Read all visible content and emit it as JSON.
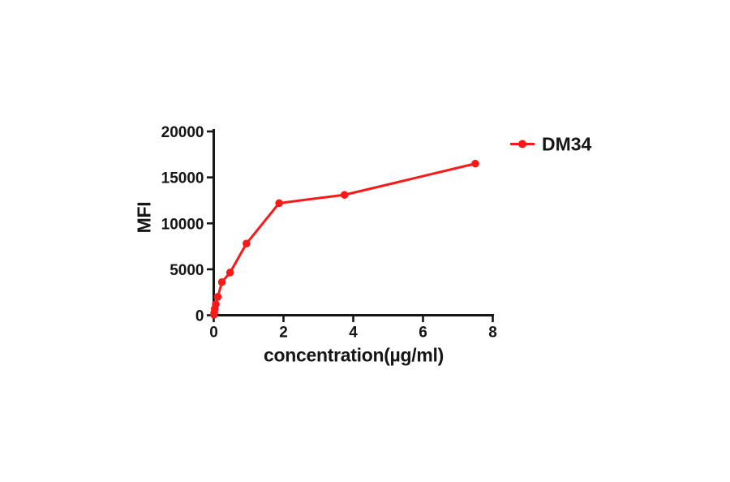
{
  "page": {
    "background": "#ffffff",
    "axis_color": "#161616",
    "tick_label_color": "#161616"
  },
  "chart_data": {
    "type": "line",
    "title": "",
    "xlabel": "concentration(µg/ml)",
    "ylabel": "MFI",
    "xlim": [
      0,
      8
    ],
    "ylim": [
      0,
      20000
    ],
    "x_ticks": [
      0,
      2,
      4,
      6,
      8
    ],
    "y_ticks": [
      0,
      5000,
      10000,
      15000,
      20000
    ],
    "grid": false,
    "legend_position": "top-right",
    "series": [
      {
        "name": "DM34",
        "color": "#fa1919",
        "marker": "circle",
        "x": [
          0.007,
          0.015,
          0.029,
          0.059,
          0.117,
          0.234,
          0.469,
          0.938,
          1.875,
          3.75,
          7.5
        ],
        "y": [
          60,
          250,
          700,
          1200,
          2000,
          3600,
          4650,
          7800,
          12200,
          13100,
          16500
        ]
      }
    ]
  }
}
